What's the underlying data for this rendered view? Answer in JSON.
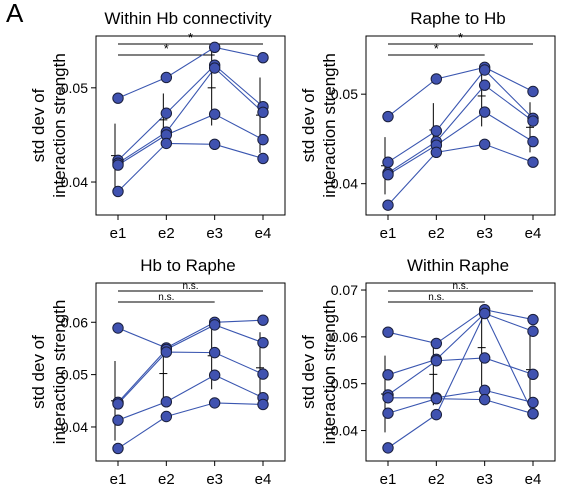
{
  "panel_label": "A",
  "colors": {
    "line": "#3a56b0",
    "marker_fill": "#4052b0",
    "marker_edge": "#1a1f3c",
    "axis": "#000000"
  },
  "chart_data": [
    {
      "type": "line",
      "title": "Within Hb connectivity",
      "ylabel": "std dev of\ninteraction strength",
      "categories": [
        "e1",
        "e2",
        "e3",
        "e4"
      ],
      "ylim": [
        0.0365,
        0.0555
      ],
      "yticks": [
        0.04,
        0.05
      ],
      "ytick_labels": [
        "0.04",
        "0.05"
      ],
      "series": [
        {
          "values": [
            0.0489,
            0.0511,
            0.0543,
            0.0532
          ]
        },
        {
          "values": [
            0.0423,
            0.0473,
            0.0524,
            0.048
          ]
        },
        {
          "values": [
            0.042,
            0.0453,
            0.0521,
            0.0474
          ]
        },
        {
          "values": [
            0.0418,
            0.045,
            0.0472,
            0.0445
          ]
        },
        {
          "values": [
            0.039,
            0.0441,
            0.044,
            0.0425
          ]
        }
      ],
      "mean": [
        0.0428,
        0.0466,
        0.05,
        0.0471
      ],
      "sd": [
        0.0034,
        0.0028,
        0.004,
        0.004
      ],
      "brackets": [
        {
          "from": "e1",
          "to": "e4",
          "label": "*"
        },
        {
          "from": "e1",
          "to": "e3",
          "label": "*"
        }
      ]
    },
    {
      "type": "line",
      "title": "Raphe to Hb",
      "ylabel": "std dev of\ninteraction strength",
      "categories": [
        "e1",
        "e2",
        "e3",
        "e4"
      ],
      "ylim": [
        0.0365,
        0.0565
      ],
      "yticks": [
        0.04,
        0.05
      ],
      "ytick_labels": [
        "0.04",
        "0.05"
      ],
      "series": [
        {
          "values": [
            0.0475,
            0.0517,
            0.053,
            0.0503
          ]
        },
        {
          "values": [
            0.0424,
            0.0459,
            0.0527,
            0.0473
          ]
        },
        {
          "values": [
            0.0412,
            0.0447,
            0.051,
            0.047
          ]
        },
        {
          "values": [
            0.041,
            0.0443,
            0.048,
            0.0447
          ]
        },
        {
          "values": [
            0.0376,
            0.0435,
            0.0444,
            0.0424
          ]
        }
      ],
      "mean": [
        0.042,
        0.046,
        0.0498,
        0.0463
      ],
      "sd": [
        0.0032,
        0.003,
        0.0034,
        0.0028
      ],
      "brackets": [
        {
          "from": "e1",
          "to": "e4",
          "label": "*"
        },
        {
          "from": "e1",
          "to": "e3",
          "label": "*"
        }
      ]
    },
    {
      "type": "line",
      "title": "Hb to Raphe",
      "ylabel": "std dev of\ninteraction strength",
      "categories": [
        "e1",
        "e2",
        "e3",
        "e4"
      ],
      "ylim": [
        0.0335,
        0.0675
      ],
      "yticks": [
        0.04,
        0.05,
        0.06
      ],
      "ytick_labels": [
        "0.04",
        "0.05",
        "0.06"
      ],
      "series": [
        {
          "values": [
            0.0589,
            0.0551,
            0.06,
            0.0604
          ]
        },
        {
          "values": [
            0.0447,
            0.0548,
            0.0595,
            0.0561
          ]
        },
        {
          "values": [
            0.0444,
            0.0543,
            0.0542,
            0.0501
          ]
        },
        {
          "values": [
            0.0413,
            0.0448,
            0.0499,
            0.0456
          ]
        },
        {
          "values": [
            0.0359,
            0.042,
            0.0446,
            0.0443
          ]
        }
      ],
      "mean": [
        0.045,
        0.0502,
        0.0536,
        0.0513
      ],
      "sd": [
        0.0076,
        0.0054,
        0.0064,
        0.0068
      ],
      "brackets": [
        {
          "from": "e1",
          "to": "e4",
          "label": "n.s."
        },
        {
          "from": "e1",
          "to": "e3",
          "label": "n.s."
        }
      ]
    },
    {
      "type": "line",
      "title": "Within Raphe",
      "ylabel": "std dev of\ninteraction strength",
      "categories": [
        "e1",
        "e2",
        "e3",
        "e4"
      ],
      "ylim": [
        0.0335,
        0.0715
      ],
      "yticks": [
        0.04,
        0.05,
        0.06,
        0.07
      ],
      "ytick_labels": [
        "0.04",
        "0.05",
        "0.06",
        "0.07"
      ],
      "series": [
        {
          "values": [
            0.061,
            0.0586,
            0.0658,
            0.0637
          ]
        },
        {
          "values": [
            0.0519,
            0.0552,
            0.065,
            0.0612
          ]
        },
        {
          "values": [
            0.0476,
            0.0549,
            0.0555,
            0.052
          ]
        },
        {
          "values": [
            0.047,
            0.047,
            0.0486,
            0.046
          ]
        },
        {
          "values": [
            0.0437,
            0.0468,
            0.0466,
            0.0436
          ]
        },
        {
          "values": [
            0.0363,
            0.0434,
            0.065,
            0.0436
          ]
        }
      ],
      "mean": [
        0.0478,
        0.052,
        0.0577,
        0.053
      ],
      "sd": [
        0.0082,
        0.0066,
        0.0088,
        0.0074
      ],
      "brackets": [
        {
          "from": "e1",
          "to": "e4",
          "label": "n.s."
        },
        {
          "from": "e1",
          "to": "e3",
          "label": "n.s."
        }
      ]
    }
  ]
}
